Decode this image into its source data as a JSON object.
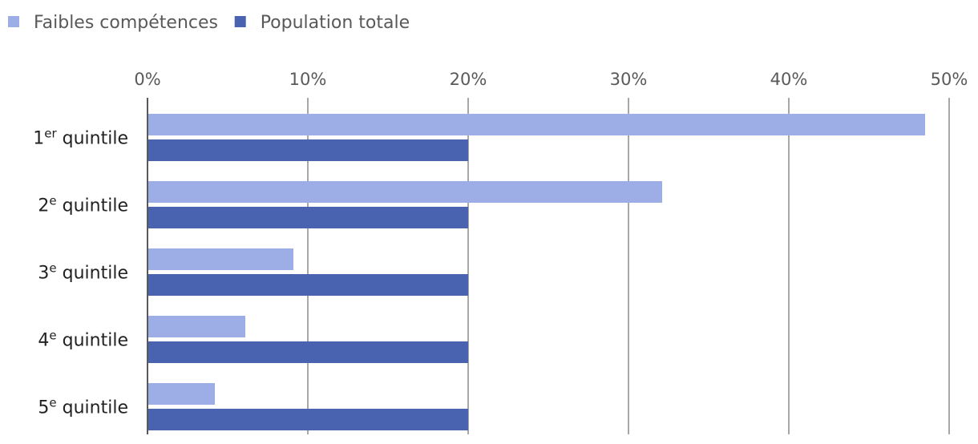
{
  "chart_data": {
    "type": "bar",
    "orientation": "horizontal",
    "categories": [
      {
        "base": "1",
        "sup": "er",
        "rest": " quintile"
      },
      {
        "base": "2",
        "sup": "e",
        "rest": " quintile"
      },
      {
        "base": "3",
        "sup": "e",
        "rest": " quintile"
      },
      {
        "base": "4",
        "sup": "e",
        "rest": " quintile"
      },
      {
        "base": "5",
        "sup": "e",
        "rest": " quintile"
      }
    ],
    "series": [
      {
        "name": "Faibles compétences",
        "color": "#9DAEE6",
        "values": [
          48.5,
          32.1,
          9.1,
          6.1,
          4.2
        ]
      },
      {
        "name": "Population totale",
        "color": "#4A63B0",
        "values": [
          20,
          20,
          20,
          20,
          20
        ]
      }
    ],
    "xlim": [
      0,
      50
    ],
    "xticks": [
      0,
      10,
      20,
      30,
      40,
      50
    ],
    "xtick_labels": [
      "0%",
      "10%",
      "20%",
      "30%",
      "40%",
      "50%"
    ],
    "grid": true,
    "legend_position": "top-left",
    "title": "",
    "xlabel": "",
    "ylabel": ""
  }
}
